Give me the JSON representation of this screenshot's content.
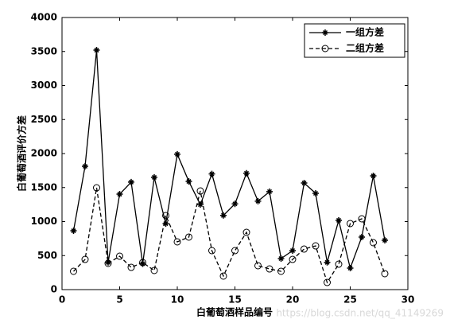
{
  "chart_data": {
    "type": "line",
    "xlabel": "白葡萄酒样品编号",
    "ylabel": "白葡萄酒评价方差",
    "watermark": "https://blog.csdn.net/qq_41149269",
    "x": [
      1,
      2,
      3,
      4,
      5,
      6,
      7,
      8,
      9,
      10,
      11,
      12,
      13,
      14,
      15,
      16,
      17,
      18,
      19,
      20,
      21,
      22,
      23,
      24,
      25,
      26,
      27,
      28
    ],
    "series": [
      {
        "name": "一组方差",
        "color": "#000000",
        "dash": "solid",
        "marker": "star",
        "values": [
          865,
          1813,
          3520,
          400,
          1403,
          1580,
          380,
          1650,
          970,
          1990,
          1590,
          1250,
          1700,
          1090,
          1260,
          1710,
          1300,
          1440,
          456,
          573,
          1567,
          1415,
          400,
          1018,
          316,
          772,
          1672,
          725
        ]
      },
      {
        "name": "二组方差",
        "color": "#000000",
        "dash": "dashed",
        "marker": "circle",
        "values": [
          269,
          444,
          1497,
          386,
          491,
          327,
          398,
          281,
          1088,
          702,
          772,
          1450,
          573,
          199,
          573,
          842,
          351,
          304,
          269,
          444,
          596,
          643,
          105,
          374,
          971,
          1041,
          690,
          234
        ]
      }
    ],
    "xlim": [
      0,
      30
    ],
    "xticks": [
      0,
      5,
      10,
      15,
      20,
      25,
      30
    ],
    "ylim": [
      0,
      4000
    ],
    "yticks": [
      0,
      500,
      1000,
      1500,
      2000,
      2500,
      3000,
      3500,
      4000
    ],
    "legend": "upper-right",
    "grid": false
  }
}
